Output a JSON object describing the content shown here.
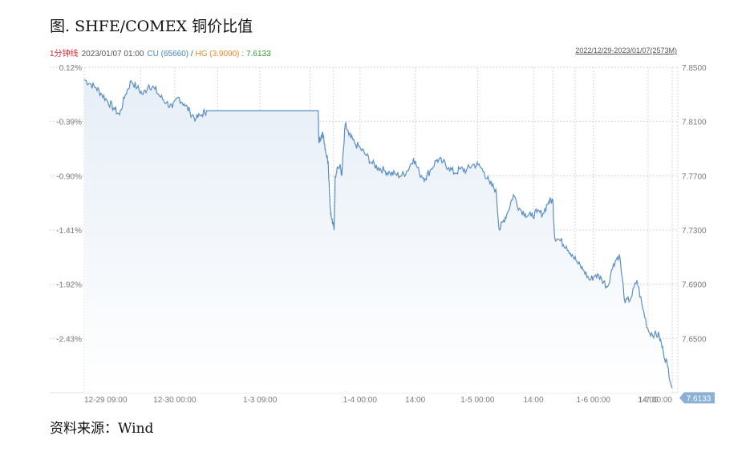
{
  "figure": {
    "title": "图. SHFE/COMEX 铜价比值",
    "source": "资料来源：Wind"
  },
  "info": {
    "period_label": "1分钟线",
    "datetime": "2023/01/07 01:00",
    "cu_text": "CU (65660)",
    "sep": " / ",
    "hg_text": "HG (3.9090)",
    "ratio_text": ": 7.6133",
    "range_text": "2022/12/29-2023/01/07(2573M)"
  },
  "colors": {
    "line": "#5b8fc2",
    "fill_top": "#e6eef7",
    "grid": "#d6d6d6",
    "cu": "#3e86c4",
    "hg": "#e8892d",
    "ratio": "#2f9a2f",
    "label": "#d9262c",
    "last_bg": "#8ab0d6"
  },
  "chart_data": {
    "type": "area",
    "title": "",
    "ylim": [
      7.61,
      7.85
    ],
    "y_ticks": [
      7.85,
      7.81,
      7.77,
      7.73,
      7.69,
      7.65
    ],
    "y_right_labels": [
      "7.8500",
      "7.8100",
      "7.7700",
      "7.7300",
      "7.6900",
      "7.6500"
    ],
    "y_left_labels": [
      "0.12%",
      "-0.39%",
      "-0.90%",
      "-1.41%",
      "-1.92%",
      "-2.43%"
    ],
    "x_tick_labels": [
      "12-29 09:00",
      "12-30 00:00",
      "1-3 09:00",
      "1-4 00:00",
      "14:00",
      "1-5 00:00",
      "14:00",
      "1-6 00:00",
      "14:00",
      "1-7 00:00"
    ],
    "x_tick_pos": [
      0.0,
      0.154,
      0.299,
      0.469,
      0.563,
      0.669,
      0.764,
      0.866,
      0.959,
      1.0
    ],
    "x_label_show": [
      true,
      true,
      true,
      true,
      true,
      true,
      true,
      true,
      true,
      true
    ],
    "x_label_anchor": [
      "start",
      "middle",
      "middle",
      "middle",
      "middle",
      "middle",
      "middle",
      "middle",
      "middle",
      "end"
    ],
    "extra_vgrid": [
      0.424,
      0.096,
      0.227,
      0.384,
      0.797,
      0.835
    ],
    "last_value_label": "7.6133",
    "series": [
      {
        "points": [
          [
            0.0,
            7.841
          ],
          [
            0.01,
            7.838
          ],
          [
            0.02,
            7.835
          ],
          [
            0.03,
            7.83
          ],
          [
            0.04,
            7.825
          ],
          [
            0.05,
            7.82
          ],
          [
            0.06,
            7.815
          ],
          [
            0.07,
            7.83
          ],
          [
            0.08,
            7.84
          ],
          [
            0.09,
            7.835
          ],
          [
            0.1,
            7.83
          ],
          [
            0.11,
            7.837
          ],
          [
            0.12,
            7.834
          ],
          [
            0.13,
            7.828
          ],
          [
            0.14,
            7.824
          ],
          [
            0.15,
            7.82
          ],
          [
            0.16,
            7.828
          ],
          [
            0.17,
            7.823
          ],
          [
            0.18,
            7.817
          ],
          [
            0.19,
            7.812
          ],
          [
            0.2,
            7.815
          ],
          [
            0.208,
            7.818
          ],
          [
            0.22,
            7.818
          ],
          [
            0.24,
            7.818
          ],
          [
            0.26,
            7.818
          ],
          [
            0.28,
            7.818
          ],
          [
            0.3,
            7.818
          ],
          [
            0.33,
            7.818
          ],
          [
            0.37,
            7.818
          ],
          [
            0.398,
            7.818
          ],
          [
            0.399,
            7.795
          ],
          [
            0.403,
            7.8
          ],
          [
            0.407,
            7.8
          ],
          [
            0.41,
            7.79
          ],
          [
            0.415,
            7.78
          ],
          [
            0.418,
            7.75
          ],
          [
            0.42,
            7.74
          ],
          [
            0.425,
            7.73
          ],
          [
            0.427,
            7.77
          ],
          [
            0.43,
            7.776
          ],
          [
            0.436,
            7.776
          ],
          [
            0.438,
            7.77
          ],
          [
            0.444,
            7.808
          ],
          [
            0.45,
            7.8
          ],
          [
            0.46,
            7.794
          ],
          [
            0.47,
            7.79
          ],
          [
            0.48,
            7.785
          ],
          [
            0.49,
            7.779
          ],
          [
            0.5,
            7.776
          ],
          [
            0.51,
            7.774
          ],
          [
            0.52,
            7.772
          ],
          [
            0.53,
            7.771
          ],
          [
            0.54,
            7.77
          ],
          [
            0.55,
            7.774
          ],
          [
            0.56,
            7.783
          ],
          [
            0.57,
            7.772
          ],
          [
            0.58,
            7.768
          ],
          [
            0.59,
            7.775
          ],
          [
            0.6,
            7.782
          ],
          [
            0.61,
            7.78
          ],
          [
            0.62,
            7.776
          ],
          [
            0.63,
            7.772
          ],
          [
            0.64,
            7.775
          ],
          [
            0.65,
            7.774
          ],
          [
            0.66,
            7.778
          ],
          [
            0.67,
            7.778
          ],
          [
            0.68,
            7.773
          ],
          [
            0.69,
            7.764
          ],
          [
            0.7,
            7.76
          ],
          [
            0.706,
            7.73
          ],
          [
            0.712,
            7.736
          ],
          [
            0.72,
            7.743
          ],
          [
            0.73,
            7.756
          ],
          [
            0.74,
            7.746
          ],
          [
            0.75,
            7.742
          ],
          [
            0.76,
            7.74
          ],
          [
            0.77,
            7.743
          ],
          [
            0.78,
            7.742
          ],
          [
            0.79,
            7.751
          ],
          [
            0.797,
            7.752
          ],
          [
            0.8,
            7.725
          ],
          [
            0.81,
            7.722
          ],
          [
            0.82,
            7.718
          ],
          [
            0.83,
            7.712
          ],
          [
            0.84,
            7.705
          ],
          [
            0.85,
            7.7
          ],
          [
            0.86,
            7.693
          ],
          [
            0.87,
            7.697
          ],
          [
            0.88,
            7.694
          ],
          [
            0.89,
            7.688
          ],
          [
            0.9,
            7.705
          ],
          [
            0.91,
            7.712
          ],
          [
            0.92,
            7.676
          ],
          [
            0.93,
            7.68
          ],
          [
            0.94,
            7.693
          ],
          [
            0.95,
            7.672
          ],
          [
            0.96,
            7.655
          ],
          [
            0.97,
            7.653
          ],
          [
            0.978,
            7.652
          ],
          [
            0.985,
            7.64
          ],
          [
            0.992,
            7.63
          ],
          [
            1.0,
            7.6133
          ]
        ]
      }
    ]
  }
}
